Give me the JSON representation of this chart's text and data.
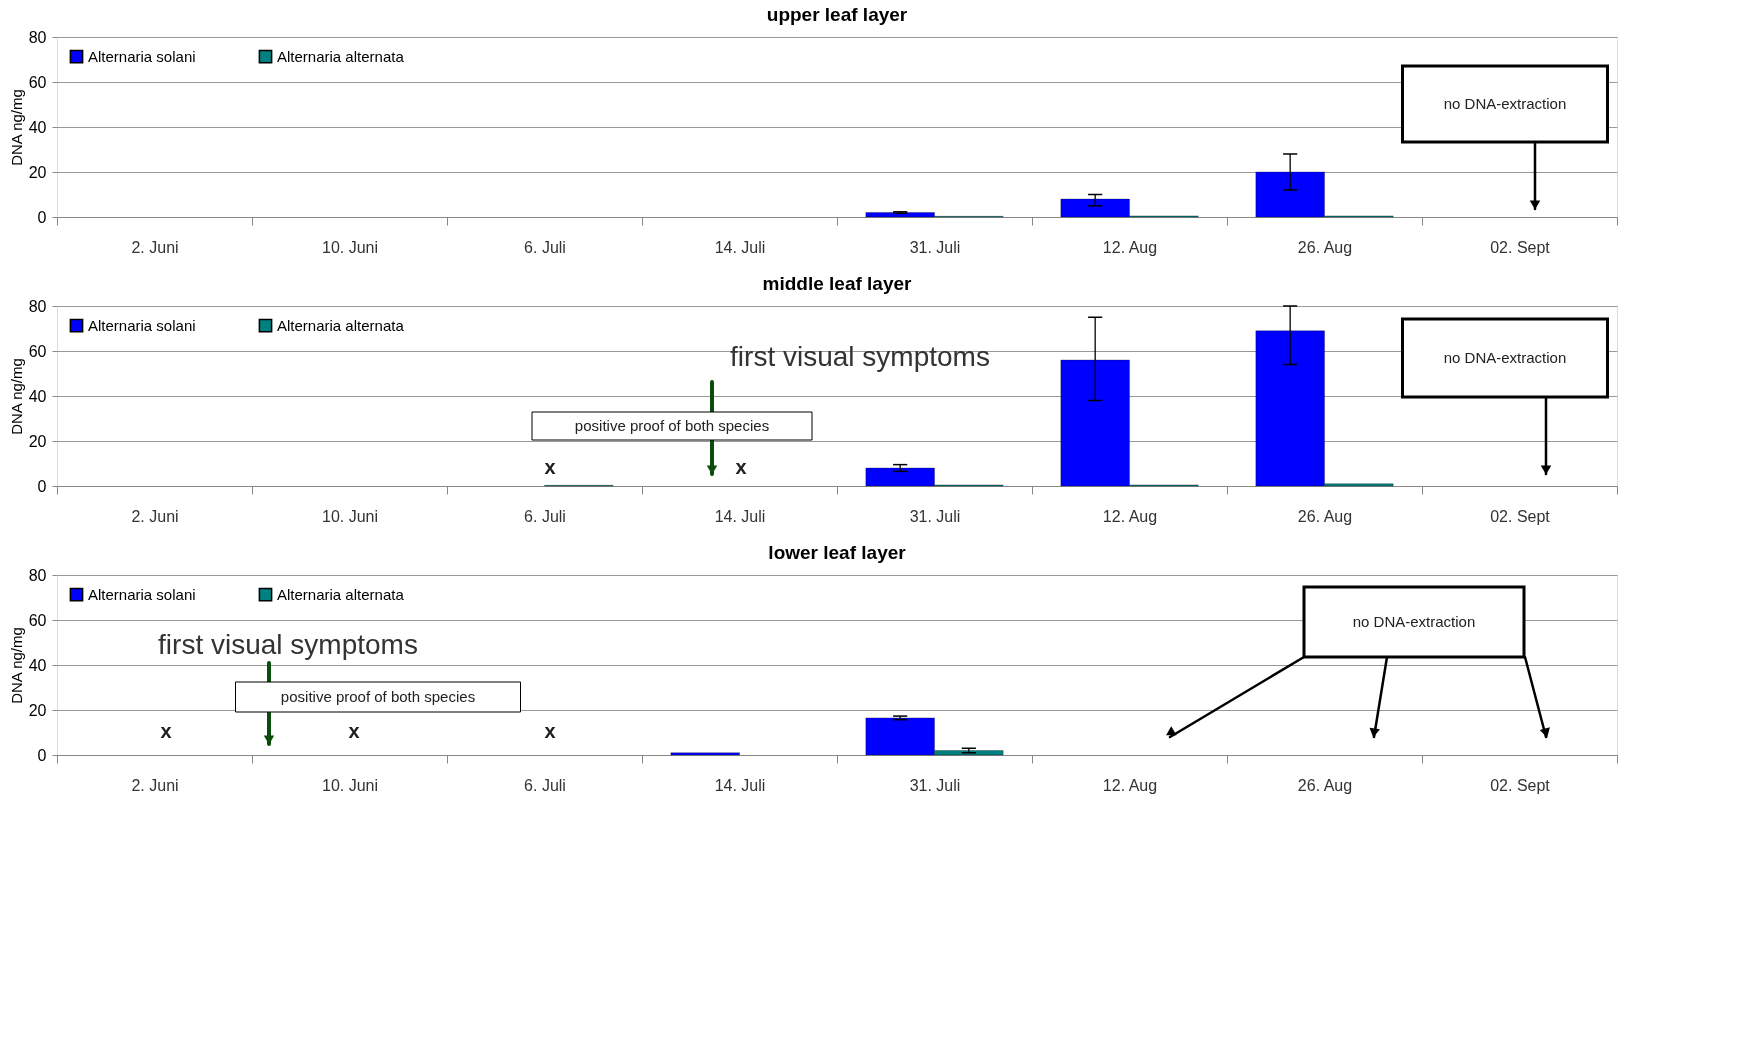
{
  "chart_data": [
    {
      "type": "bar",
      "title": "upper leaf layer",
      "ylabel": "DNA ng/mg",
      "categories": [
        "2. Juni",
        "10. Juni",
        "6. Juli",
        "14. Juli",
        "31. Juli",
        "12. Aug",
        "26. Aug",
        "02. Sept"
      ],
      "series": [
        {
          "name": "Alternaria solani",
          "color": "#0000ff",
          "values": [
            null,
            null,
            null,
            null,
            2,
            8,
            20,
            null
          ],
          "errors": [
            null,
            null,
            null,
            null,
            0.3,
            [
              5,
              10
            ],
            [
              12,
              28
            ],
            null
          ]
        },
        {
          "name": "Alternaria alternata",
          "color": "#008080",
          "values": [
            null,
            null,
            null,
            null,
            0.3,
            0.5,
            0.5,
            null
          ]
        }
      ],
      "ylim": [
        0,
        80
      ],
      "yticks": [
        0,
        20,
        40,
        60,
        80
      ],
      "grid": "y",
      "legend": "top left",
      "annotations": [
        "no DNA-extraction"
      ]
    },
    {
      "type": "bar",
      "title": "middle leaf layer",
      "ylabel": "DNA ng/mg",
      "categories": [
        "2. Juni",
        "10. Juni",
        "6. Juli",
        "14. Juli",
        "31. Juli",
        "12. Aug",
        "26. Aug",
        "02. Sept"
      ],
      "series": [
        {
          "name": "Alternaria solani",
          "color": "#0000ff",
          "values": [
            null,
            null,
            null,
            null,
            8,
            56,
            69,
            null
          ],
          "errors": [
            null,
            null,
            null,
            null,
            [
              6.5,
              9.5
            ],
            [
              38,
              75
            ],
            [
              54,
              80
            ],
            null
          ]
        },
        {
          "name": "Alternaria alternata",
          "color": "#008080",
          "values": [
            null,
            null,
            0.3,
            null,
            0.5,
            0.5,
            1,
            null
          ]
        }
      ],
      "ylim": [
        0,
        80
      ],
      "yticks": [
        0,
        20,
        40,
        60,
        80
      ],
      "grid": "y",
      "legend": "top left",
      "annotations": [
        "first visual symptoms",
        "positive proof of both species",
        "no DNA-extraction",
        "x",
        "x"
      ]
    },
    {
      "type": "bar",
      "title": "lower leaf layer",
      "ylabel": "DNA ng/mg",
      "categories": [
        "2. Juni",
        "10. Juni",
        "6. Juli",
        "14. Juli",
        "31. Juli",
        "12. Aug",
        "26. Aug",
        "02. Sept"
      ],
      "series": [
        {
          "name": "Alternaria solani",
          "color": "#0000ff",
          "values": [
            null,
            null,
            null,
            1,
            16.5,
            null,
            null,
            null
          ],
          "errors": [
            null,
            null,
            null,
            null,
            0.8,
            null,
            null,
            null
          ]
        },
        {
          "name": "Alternaria alternata",
          "color": "#008080",
          "values": [
            null,
            null,
            null,
            null,
            2,
            null,
            null,
            null
          ],
          "errors": [
            null,
            null,
            null,
            null,
            1,
            null,
            null,
            null
          ]
        }
      ],
      "ylim": [
        0,
        80
      ],
      "yticks": [
        0,
        20,
        40,
        60,
        80
      ],
      "grid": "y",
      "legend": "top left",
      "annotations": [
        "first visual symptoms",
        "positive proof of both species",
        "no DNA-extraction",
        "x",
        "x",
        "x"
      ]
    }
  ]
}
